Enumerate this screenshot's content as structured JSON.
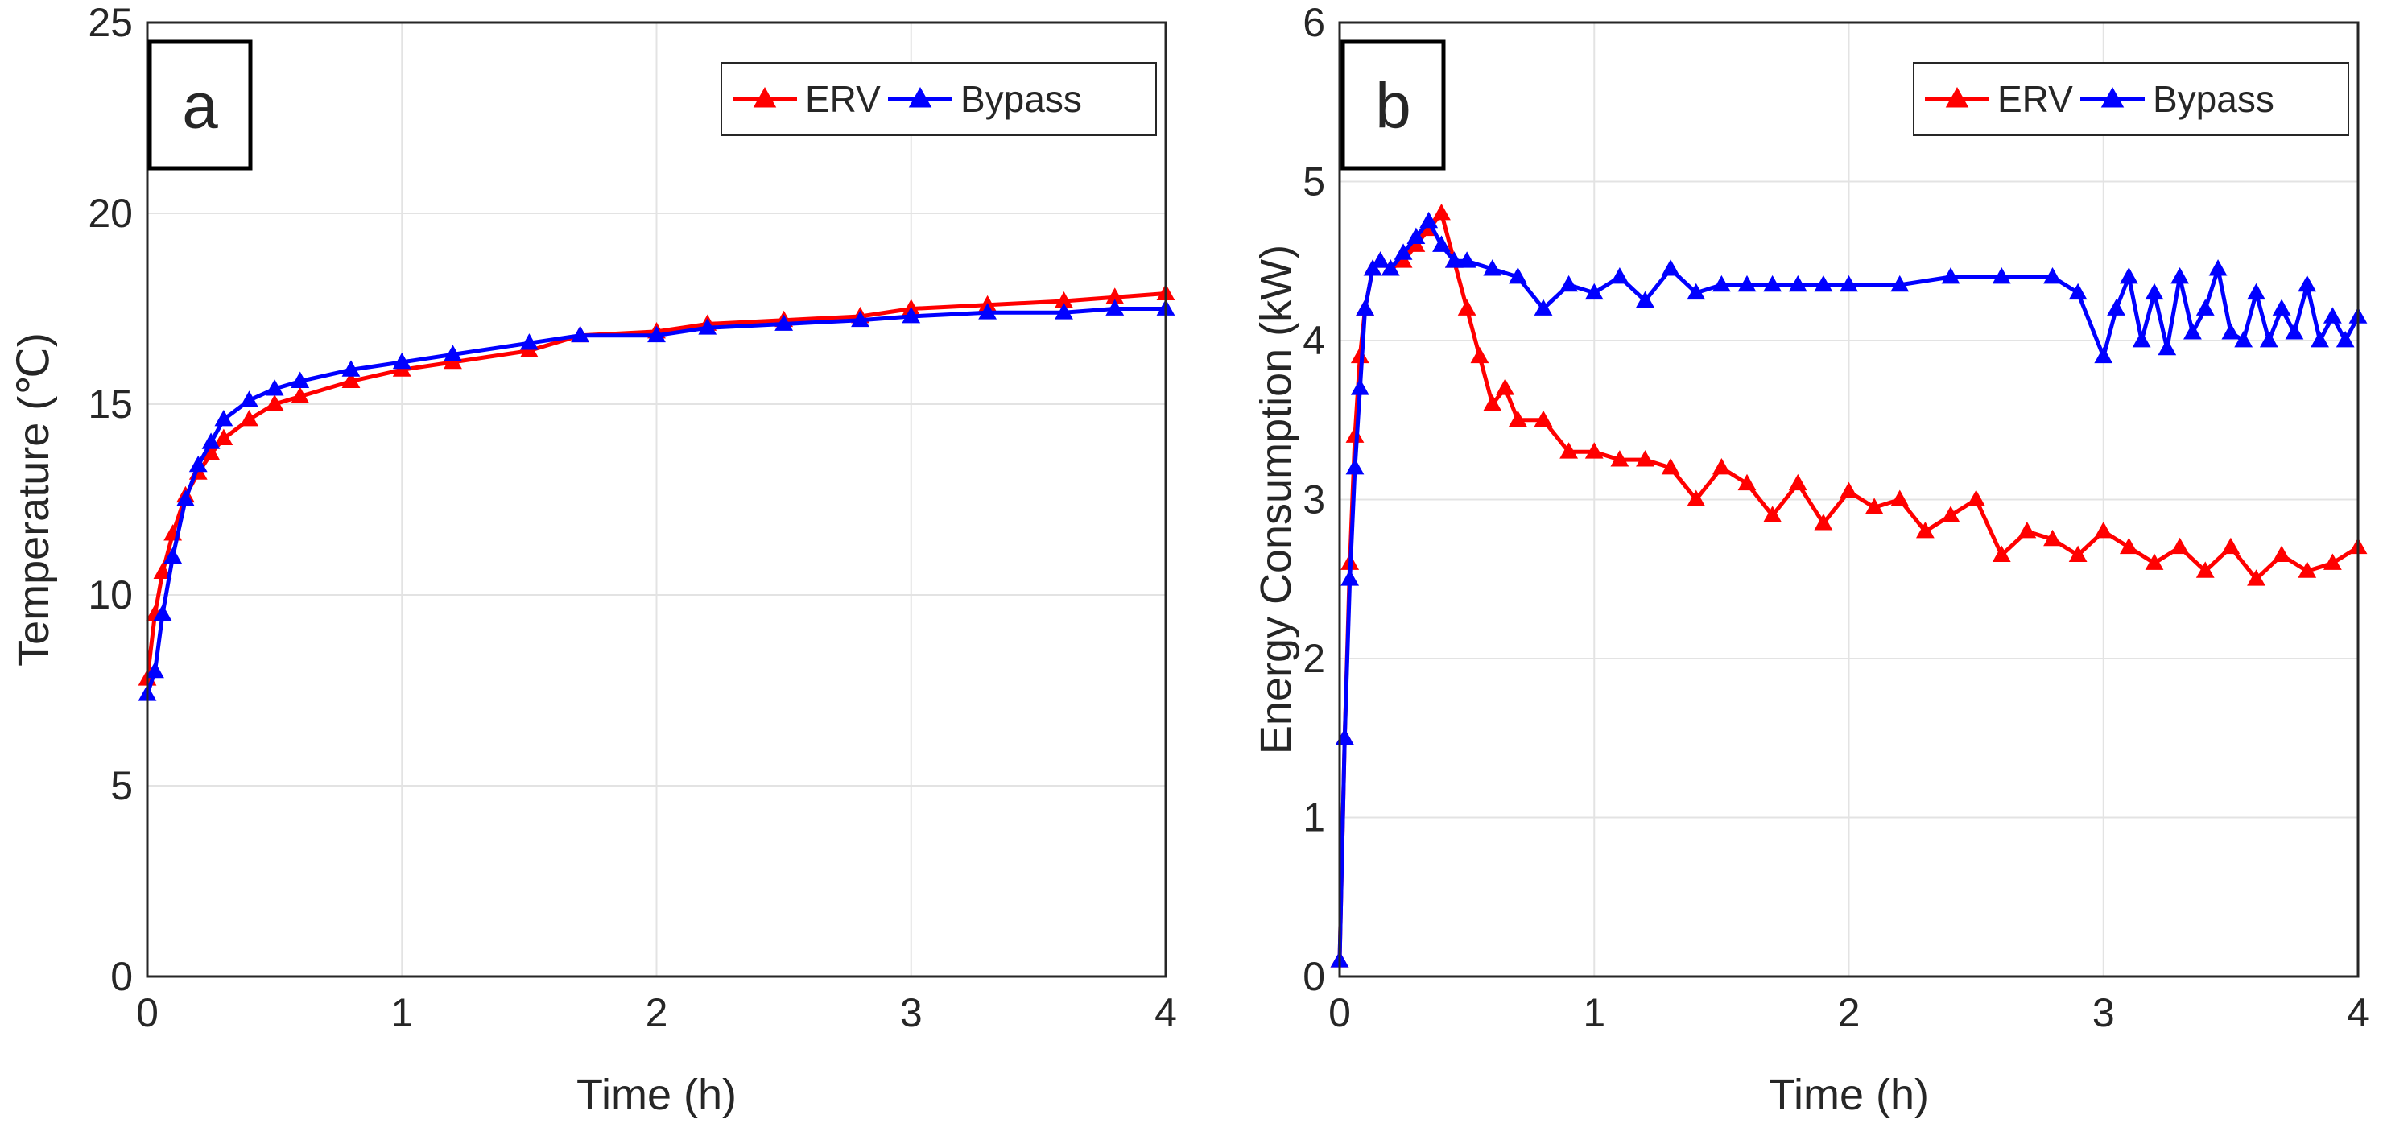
{
  "chart_data": [
    {
      "panel_label": "a",
      "type": "line",
      "title": "",
      "xlabel": "Time (h)",
      "ylabel": "Temperature (℃)",
      "xlim": [
        0,
        4
      ],
      "ylim": [
        0,
        25
      ],
      "xticks": [
        "0",
        "1",
        "2",
        "3",
        "4"
      ],
      "yticks": [
        "0",
        "5",
        "10",
        "15",
        "20",
        "25"
      ],
      "grid": true,
      "legend_position": "top-right",
      "marker": "triangle",
      "series": [
        {
          "name": "ERV",
          "color": "#ff0000",
          "x": [
            0,
            0.03,
            0.06,
            0.1,
            0.15,
            0.2,
            0.25,
            0.3,
            0.4,
            0.5,
            0.6,
            0.8,
            1.0,
            1.2,
            1.5,
            1.7,
            2.0,
            2.2,
            2.5,
            2.8,
            3.0,
            3.3,
            3.6,
            3.8,
            4.0
          ],
          "y": [
            7.8,
            9.5,
            10.6,
            11.6,
            12.6,
            13.2,
            13.7,
            14.1,
            14.6,
            15.0,
            15.2,
            15.6,
            15.9,
            16.1,
            16.4,
            16.8,
            16.9,
            17.1,
            17.2,
            17.3,
            17.5,
            17.6,
            17.7,
            17.8,
            17.9
          ]
        },
        {
          "name": "Bypass",
          "color": "#0000ff",
          "x": [
            0,
            0.03,
            0.06,
            0.1,
            0.15,
            0.2,
            0.25,
            0.3,
            0.4,
            0.5,
            0.6,
            0.8,
            1.0,
            1.2,
            1.5,
            1.7,
            2.0,
            2.2,
            2.5,
            2.8,
            3.0,
            3.3,
            3.6,
            3.8,
            4.0
          ],
          "y": [
            7.4,
            8.0,
            9.5,
            11.0,
            12.5,
            13.4,
            14.0,
            14.6,
            15.1,
            15.4,
            15.6,
            15.9,
            16.1,
            16.3,
            16.6,
            16.8,
            16.8,
            17.0,
            17.1,
            17.2,
            17.3,
            17.4,
            17.4,
            17.5,
            17.5
          ]
        }
      ]
    },
    {
      "panel_label": "b",
      "type": "line",
      "title": "",
      "xlabel": "Time (h)",
      "ylabel": "Energy Consumption (kW)",
      "xlim": [
        0,
        4
      ],
      "ylim": [
        0,
        6
      ],
      "xticks": [
        "0",
        "1",
        "2",
        "3",
        "4"
      ],
      "yticks": [
        "0",
        "1",
        "2",
        "3",
        "4",
        "5",
        "6"
      ],
      "grid": true,
      "legend_position": "top-right",
      "marker": "triangle",
      "series": [
        {
          "name": "ERV",
          "color": "#ff0000",
          "x": [
            0,
            0.02,
            0.04,
            0.06,
            0.08,
            0.1,
            0.13,
            0.16,
            0.2,
            0.25,
            0.3,
            0.35,
            0.4,
            0.45,
            0.5,
            0.55,
            0.6,
            0.65,
            0.7,
            0.8,
            0.9,
            1.0,
            1.1,
            1.2,
            1.3,
            1.4,
            1.5,
            1.6,
            1.7,
            1.8,
            1.9,
            2.0,
            2.1,
            2.2,
            2.3,
            2.4,
            2.5,
            2.6,
            2.7,
            2.8,
            2.9,
            3.0,
            3.1,
            3.2,
            3.3,
            3.4,
            3.5,
            3.6,
            3.7,
            3.8,
            3.9,
            4.0
          ],
          "y": [
            0.1,
            1.5,
            2.6,
            3.4,
            3.9,
            4.2,
            4.45,
            4.5,
            4.45,
            4.5,
            4.6,
            4.7,
            4.8,
            4.5,
            4.2,
            3.9,
            3.6,
            3.7,
            3.5,
            3.5,
            3.3,
            3.3,
            3.25,
            3.25,
            3.2,
            3.0,
            3.2,
            3.1,
            2.9,
            3.1,
            2.85,
            3.05,
            2.95,
            3.0,
            2.8,
            2.9,
            3.0,
            2.65,
            2.8,
            2.75,
            2.65,
            2.8,
            2.7,
            2.6,
            2.7,
            2.55,
            2.7,
            2.5,
            2.65,
            2.55,
            2.6,
            2.7
          ]
        },
        {
          "name": "Bypass",
          "color": "#0000ff",
          "x": [
            0,
            0.02,
            0.04,
            0.06,
            0.08,
            0.1,
            0.13,
            0.16,
            0.2,
            0.25,
            0.3,
            0.35,
            0.4,
            0.45,
            0.5,
            0.6,
            0.7,
            0.8,
            0.9,
            1.0,
            1.1,
            1.2,
            1.3,
            1.4,
            1.5,
            1.6,
            1.7,
            1.8,
            1.9,
            2.0,
            2.2,
            2.4,
            2.6,
            2.8,
            2.9,
            3.0,
            3.05,
            3.1,
            3.15,
            3.2,
            3.25,
            3.3,
            3.35,
            3.4,
            3.45,
            3.5,
            3.55,
            3.6,
            3.65,
            3.7,
            3.75,
            3.8,
            3.85,
            3.9,
            3.95,
            4.0
          ],
          "y": [
            0.1,
            1.5,
            2.5,
            3.2,
            3.7,
            4.2,
            4.45,
            4.5,
            4.45,
            4.55,
            4.65,
            4.75,
            4.6,
            4.5,
            4.5,
            4.45,
            4.4,
            4.2,
            4.35,
            4.3,
            4.4,
            4.25,
            4.45,
            4.3,
            4.35,
            4.35,
            4.35,
            4.35,
            4.35,
            4.35,
            4.35,
            4.4,
            4.4,
            4.4,
            4.3,
            3.9,
            4.2,
            4.4,
            4.0,
            4.3,
            3.95,
            4.4,
            4.05,
            4.2,
            4.45,
            4.05,
            4.0,
            4.3,
            4.0,
            4.2,
            4.05,
            4.35,
            4.0,
            4.15,
            4.0,
            4.15
          ]
        }
      ]
    }
  ]
}
